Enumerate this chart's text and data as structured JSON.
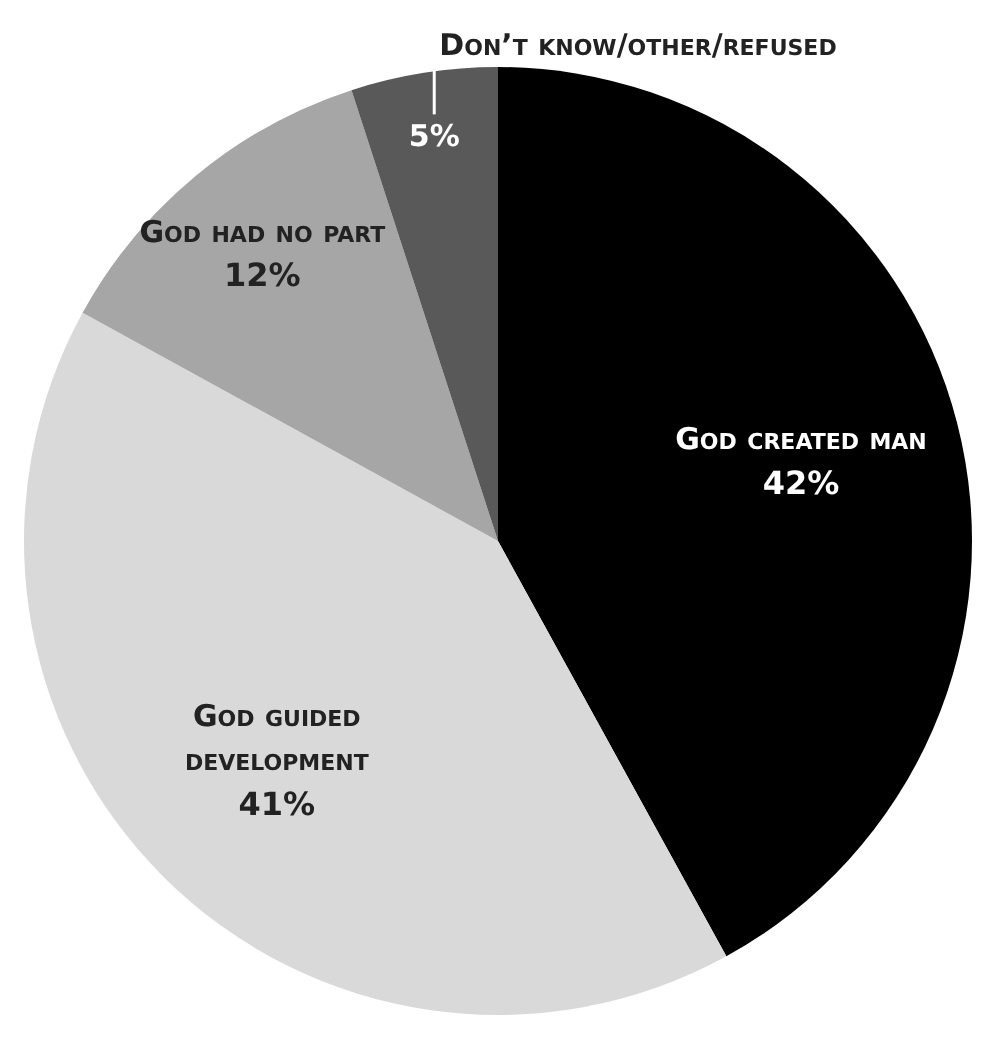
{
  "chart_data": {
    "type": "pie",
    "categories": [
      "God created man",
      "God guided development",
      "God had no part",
      "Don’t know/other/refused"
    ],
    "values": [
      42,
      41,
      12,
      5
    ],
    "colors": [
      "#000000",
      "#d9d9d9",
      "#a6a6a6",
      "#595959"
    ],
    "value_labels": [
      "42%",
      "41%",
      "12%",
      "5%"
    ],
    "legend": false
  }
}
